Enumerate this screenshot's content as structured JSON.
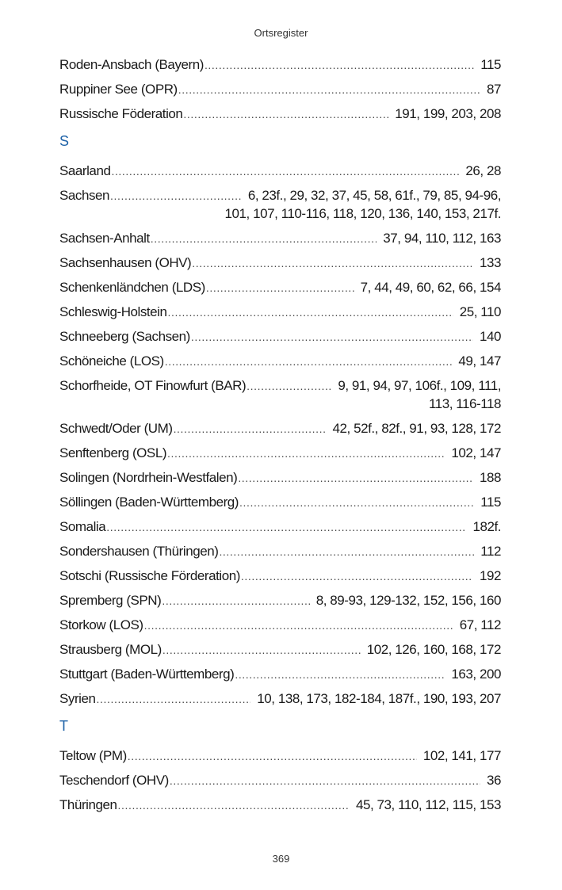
{
  "header": {
    "title": "Ortsregister"
  },
  "footer": {
    "page_number": "369"
  },
  "colors": {
    "section_letter": "#1f63a8",
    "text": "#1a1a1a"
  },
  "blocks": [
    {
      "type": "entry",
      "name": "Roden-Ansbach (Bayern)",
      "pages": [
        "115"
      ]
    },
    {
      "type": "entry",
      "name": "Ruppiner See (OPR)",
      "pages": [
        "87"
      ]
    },
    {
      "type": "entry",
      "name": "Russische Föderation",
      "pages": [
        "191, 199, 203, 208"
      ]
    },
    {
      "type": "section",
      "letter": "S"
    },
    {
      "type": "entry",
      "name": "Saarland",
      "pages": [
        "26, 28"
      ]
    },
    {
      "type": "entry",
      "name": "Sachsen",
      "pages": [
        "6, 23f., 29, 32, 37, 45, 58, 61f., 79, 85, 94-96,",
        "101, 107, 110-116, 118, 120, 136, 140, 153, 217f."
      ]
    },
    {
      "type": "entry",
      "name": "Sachsen-Anhalt",
      "pages": [
        "37, 94, 110, 112, 163"
      ]
    },
    {
      "type": "entry",
      "name": "Sachsenhausen (OHV)",
      "pages": [
        "133"
      ]
    },
    {
      "type": "entry",
      "name": "Schenkenländchen (LDS)",
      "pages": [
        "7, 44, 49, 60, 62, 66, 154"
      ]
    },
    {
      "type": "entry",
      "name": "Schleswig-Holstein",
      "pages": [
        "25, 110"
      ]
    },
    {
      "type": "entry",
      "name": "Schneeberg (Sachsen)",
      "pages": [
        "140"
      ]
    },
    {
      "type": "entry",
      "name": "Schöneiche (LOS)",
      "pages": [
        "49, 147"
      ]
    },
    {
      "type": "entry",
      "name": "Schorfheide, OT Finowfurt (BAR)",
      "pages": [
        "9, 91, 94, 97, 106f., 109, 111,",
        "113, 116-118"
      ]
    },
    {
      "type": "entry",
      "name": "Schwedt/Oder (UM)",
      "pages": [
        "42, 52f., 82f., 91, 93, 128, 172"
      ]
    },
    {
      "type": "entry",
      "name": "Senftenberg (OSL)",
      "pages": [
        "102, 147"
      ]
    },
    {
      "type": "entry",
      "name": "Solingen (Nordrhein-Westfalen)",
      "pages": [
        "188"
      ]
    },
    {
      "type": "entry",
      "name": "Söllingen (Baden-Württemberg)",
      "pages": [
        "115"
      ]
    },
    {
      "type": "entry",
      "name": "Somalia",
      "pages": [
        "182f."
      ]
    },
    {
      "type": "entry",
      "name": "Sondershausen (Thüringen)",
      "pages": [
        "112"
      ]
    },
    {
      "type": "entry",
      "name": "Sotschi (Russische Förderation)",
      "pages": [
        "192"
      ]
    },
    {
      "type": "entry",
      "name": "Spremberg (SPN)",
      "pages": [
        "8, 89-93, 129-132, 152, 156, 160"
      ]
    },
    {
      "type": "entry",
      "name": "Storkow (LOS)",
      "pages": [
        "67, 112"
      ]
    },
    {
      "type": "entry",
      "name": "Strausberg (MOL)",
      "pages": [
        "102, 126, 160, 168, 172"
      ]
    },
    {
      "type": "entry",
      "name": "Stuttgart (Baden-Württemberg)",
      "pages": [
        "163, 200"
      ]
    },
    {
      "type": "entry",
      "name": "Syrien",
      "pages": [
        "10, 138, 173, 182-184, 187f., 190, 193, 207"
      ]
    },
    {
      "type": "section",
      "letter": "T"
    },
    {
      "type": "entry",
      "name": "Teltow (PM)",
      "pages": [
        "102, 141, 177"
      ]
    },
    {
      "type": "entry",
      "name": "Teschendorf (OHV)",
      "pages": [
        "36"
      ]
    },
    {
      "type": "entry",
      "name": "Thüringen",
      "pages": [
        "45, 73, 110, 112, 115, 153"
      ]
    }
  ]
}
